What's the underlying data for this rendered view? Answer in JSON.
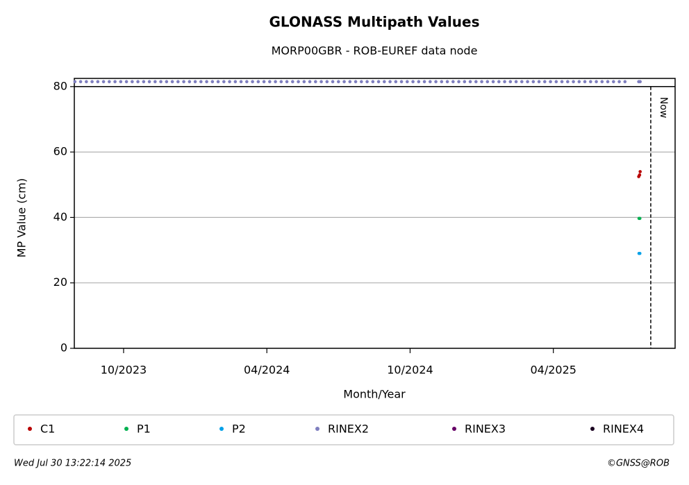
{
  "chart_data": {
    "type": "scatter",
    "title": "GLONASS Multipath Values",
    "subtitle": "MORP00GBR - ROB-EUREF data node",
    "x_label": "Month/Year",
    "y_label": "MP Value (cm)",
    "xlim": [
      2023.578,
      2025.675
    ],
    "xticks": [
      {
        "value": 2023.75,
        "label": "10/2023"
      },
      {
        "value": 2024.25,
        "label": "04/2024"
      },
      {
        "value": 2024.75,
        "label": "10/2024"
      },
      {
        "value": 2025.25,
        "label": "04/2025"
      }
    ],
    "ylim": [
      0,
      82.5
    ],
    "yticks": [
      0,
      20,
      40,
      60,
      80
    ],
    "grid": true,
    "now_x": 2025.59,
    "now_label": "Now",
    "series": [
      {
        "name": "C1",
        "color": "#b80000",
        "x": [
          2025.548,
          2025.551,
          2025.553
        ],
        "values": [
          52.5,
          53,
          54
        ]
      },
      {
        "name": "P1",
        "color": "#00b050",
        "x": [
          2025.549,
          2025.552
        ],
        "values": [
          39.7,
          39.7
        ]
      },
      {
        "name": "P2",
        "color": "#00a0e8",
        "x": [
          2025.549,
          2025.552
        ],
        "values": [
          29,
          29
        ]
      },
      {
        "name": "RINEX2",
        "color": "#7f7fbf",
        "x": [
          2023.58,
          2023.6,
          2023.62,
          2023.64,
          2023.66,
          2023.68,
          2023.7,
          2023.72,
          2023.74,
          2023.76,
          2023.78,
          2023.8,
          2023.82,
          2023.84,
          2023.86,
          2023.88,
          2023.9,
          2023.92,
          2023.94,
          2023.96,
          2023.98,
          2024.0,
          2024.02,
          2024.04,
          2024.06,
          2024.08,
          2024.1,
          2024.12,
          2024.14,
          2024.16,
          2024.18,
          2024.2,
          2024.22,
          2024.24,
          2024.26,
          2024.28,
          2024.3,
          2024.32,
          2024.34,
          2024.36,
          2024.38,
          2024.4,
          2024.42,
          2024.44,
          2024.46,
          2024.48,
          2024.5,
          2024.52,
          2024.54,
          2024.56,
          2024.58,
          2024.6,
          2024.62,
          2024.64,
          2024.66,
          2024.68,
          2024.7,
          2024.72,
          2024.74,
          2024.76,
          2024.78,
          2024.8,
          2024.82,
          2024.84,
          2024.86,
          2024.88,
          2024.9,
          2024.92,
          2024.94,
          2024.96,
          2024.98,
          2025.0,
          2025.02,
          2025.04,
          2025.06,
          2025.08,
          2025.1,
          2025.12,
          2025.14,
          2025.16,
          2025.18,
          2025.2,
          2025.22,
          2025.24,
          2025.26,
          2025.28,
          2025.3,
          2025.32,
          2025.34,
          2025.36,
          2025.38,
          2025.4,
          2025.42,
          2025.44,
          2025.46,
          2025.48,
          2025.5,
          2025.548,
          2025.553
        ],
        "values": [
          81.5,
          81.5,
          81.5,
          81.5,
          81.5,
          81.5,
          81.5,
          81.5,
          81.5,
          81.5,
          81.5,
          81.5,
          81.5,
          81.5,
          81.5,
          81.5,
          81.5,
          81.5,
          81.5,
          81.5,
          81.5,
          81.5,
          81.5,
          81.5,
          81.5,
          81.5,
          81.5,
          81.5,
          81.5,
          81.5,
          81.5,
          81.5,
          81.5,
          81.5,
          81.5,
          81.5,
          81.5,
          81.5,
          81.5,
          81.5,
          81.5,
          81.5,
          81.5,
          81.5,
          81.5,
          81.5,
          81.5,
          81.5,
          81.5,
          81.5,
          81.5,
          81.5,
          81.5,
          81.5,
          81.5,
          81.5,
          81.5,
          81.5,
          81.5,
          81.5,
          81.5,
          81.5,
          81.5,
          81.5,
          81.5,
          81.5,
          81.5,
          81.5,
          81.5,
          81.5,
          81.5,
          81.5,
          81.5,
          81.5,
          81.5,
          81.5,
          81.5,
          81.5,
          81.5,
          81.5,
          81.5,
          81.5,
          81.5,
          81.5,
          81.5,
          81.5,
          81.5,
          81.5,
          81.5,
          81.5,
          81.5,
          81.5,
          81.5,
          81.5,
          81.5,
          81.5,
          81.5,
          81.5,
          81.5
        ]
      },
      {
        "name": "RINEX3",
        "color": "#660066",
        "x": [],
        "values": []
      },
      {
        "name": "RINEX4",
        "color": "#1a0020",
        "x": [],
        "values": []
      }
    ],
    "footer_left": "Wed Jul 30 13:22:14 2025",
    "footer_right": "©GNSS@ROB"
  }
}
